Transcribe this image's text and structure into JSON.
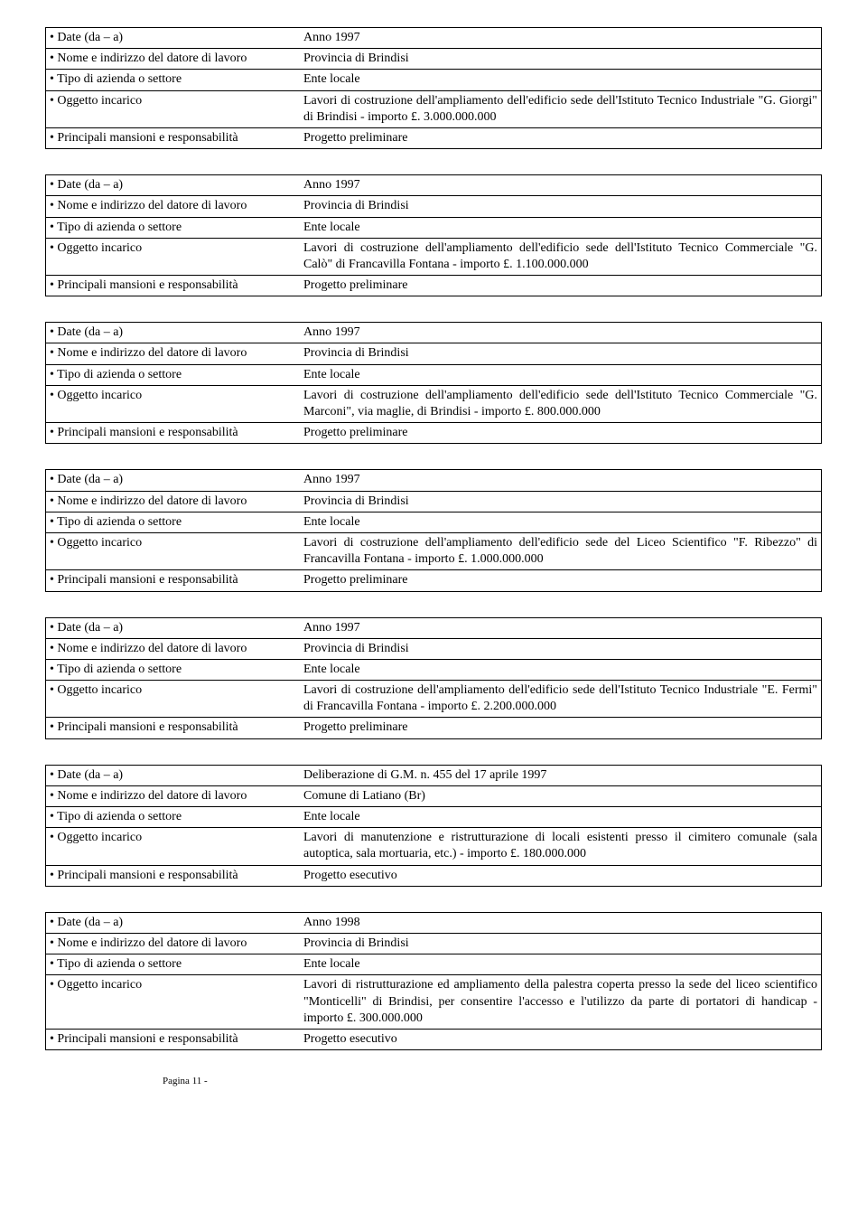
{
  "labels": {
    "date": "• Date (da – a)",
    "employer": " • Nome e indirizzo del datore di lavoro",
    "sector": "• Tipo di azienda o settore",
    "subject": "• Oggetto incarico",
    "responsibilities": "• Principali mansioni e responsabilità"
  },
  "entries": [
    {
      "date": "Anno 1997",
      "employer": "Provincia di Brindisi",
      "sector": "Ente locale",
      "subject": "Lavori di costruzione dell'ampliamento dell'edificio sede dell'Istituto Tecnico Industriale \"G. Giorgi\" di Brindisi - importo £. 3.000.000.000",
      "responsibilities": "Progetto preliminare"
    },
    {
      "date": "Anno 1997",
      "employer": "Provincia di Brindisi",
      "sector": "Ente locale",
      "subject": "Lavori di costruzione dell'ampliamento dell'edificio sede dell'Istituto Tecnico Commerciale \"G. Calò\" di Francavilla Fontana - importo £. 1.100.000.000",
      "responsibilities": "Progetto preliminare"
    },
    {
      "date": "Anno 1997",
      "employer": "Provincia di Brindisi",
      "sector": "Ente locale",
      "subject": "Lavori di costruzione dell'ampliamento dell'edificio sede dell'Istituto Tecnico Commerciale \"G. Marconi\", via maglie, di Brindisi - importo £. 800.000.000",
      "responsibilities": "Progetto preliminare"
    },
    {
      "date": "Anno 1997",
      "employer": "Provincia di Brindisi",
      "sector": "Ente locale",
      "subject": "Lavori di costruzione dell'ampliamento dell'edificio sede del Liceo Scientifico \"F. Ribezzo\" di Francavilla Fontana - importo £. 1.000.000.000",
      "responsibilities": "Progetto preliminare"
    },
    {
      "date": "Anno 1997",
      "employer": "Provincia di Brindisi",
      "sector": "Ente locale",
      "subject": "Lavori di costruzione dell'ampliamento dell'edificio sede dell'Istituto Tecnico Industriale \"E. Fermi\" di Francavilla Fontana - importo £. 2.200.000.000",
      "responsibilities": "Progetto preliminare"
    },
    {
      "date": "Deliberazione di G.M. n. 455 del 17 aprile 1997",
      "employer": "Comune di Latiano (Br)",
      "sector": "Ente locale",
      "subject": "Lavori di manutenzione  e ristrutturazione di locali esistenti presso il cimitero comunale (sala autoptica, sala  mortuaria, etc.) - importo £. 180.000.000",
      "responsibilities": "Progetto esecutivo"
    },
    {
      "date": "Anno 1998",
      "employer": "Provincia di Brindisi",
      "sector": "Ente locale",
      "subject": "Lavori di ristrutturazione ed ampliamento della palestra coperta presso la sede del liceo scientifico \"Monticelli\" di Brindisi, per consentire l'accesso e l'utilizzo da parte di portatori di handicap  - importo £. 300.000.000",
      "responsibilities": "Progetto esecutivo"
    }
  ],
  "footer": "Pagina 11 -"
}
